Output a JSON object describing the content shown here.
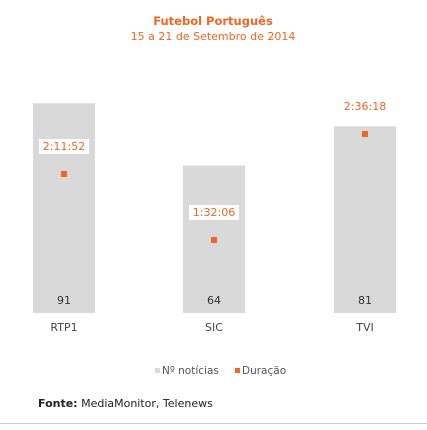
{
  "colors": {
    "bar": "#d9d9d9",
    "duration": "#f26522",
    "title": "#f26522"
  },
  "chart_data": {
    "type": "bar",
    "title": "Futebol Português",
    "subtitle": "15 a 21 de Setembro de 2014",
    "categories": [
      "RTP1",
      "SIC",
      "TVI"
    ],
    "series": [
      {
        "name": "Nº notícias",
        "type": "bar",
        "values": [
          91,
          64,
          81
        ]
      },
      {
        "name": "Duração",
        "type": "scatter",
        "values": [
          7912,
          5526,
          9378
        ],
        "labels": [
          "2:11:52",
          "1:32:06",
          "2:36:18"
        ]
      }
    ],
    "legend": "bottom-center",
    "grid": false
  },
  "source": {
    "label": "Fonte:",
    "text": "MediaMonitor, Telenews"
  }
}
